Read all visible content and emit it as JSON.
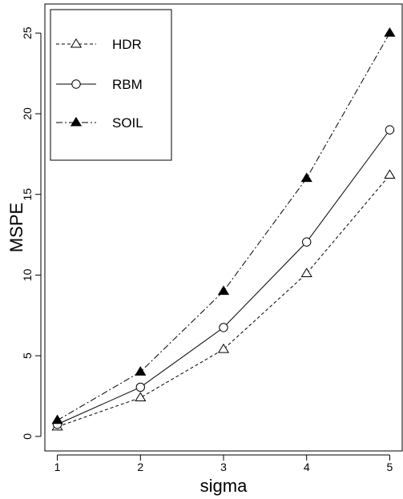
{
  "chart_data": {
    "type": "line",
    "xlabel": "sigma",
    "ylabel": "MSPE",
    "x": [
      1,
      2,
      3,
      4,
      5
    ],
    "xlim": [
      0.85,
      5.15
    ],
    "ylim": [
      -0.9,
      26.8
    ],
    "xticks": [
      "1",
      "2",
      "3",
      "4",
      "5"
    ],
    "yticks": [
      "0",
      "5",
      "10",
      "15",
      "20",
      "25"
    ],
    "grid": false,
    "legend_position": "top-left",
    "series": [
      {
        "name": "HDR",
        "values": [
          0.6,
          2.4,
          5.4,
          10.1,
          16.2
        ],
        "marker": "open-triangle",
        "line": "dashed",
        "color": "#000000"
      },
      {
        "name": "RBM",
        "values": [
          0.75,
          3.05,
          6.75,
          12.05,
          19.0
        ],
        "marker": "open-circle",
        "line": "solid",
        "color": "#000000"
      },
      {
        "name": "SOIL",
        "values": [
          1.0,
          4.0,
          9.0,
          16.0,
          25.0
        ],
        "marker": "filled-triangle",
        "line": "dashdot",
        "color": "#000000"
      }
    ]
  }
}
